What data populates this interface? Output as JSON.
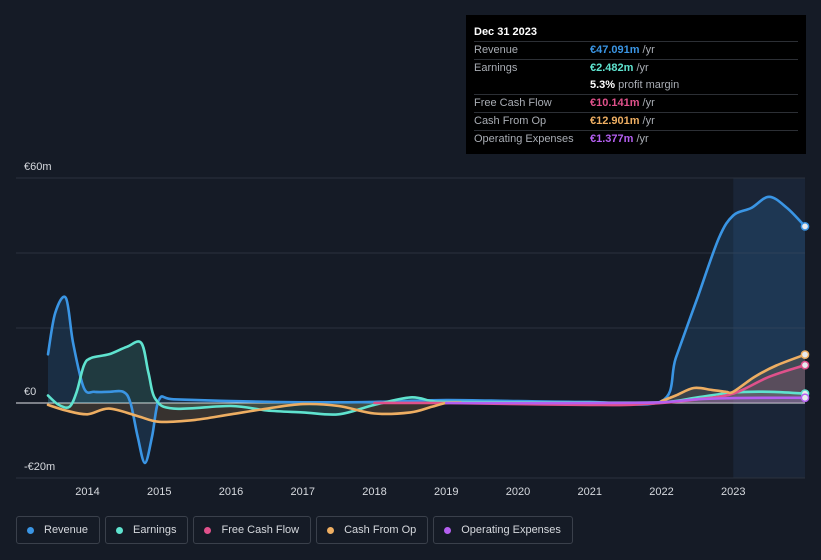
{
  "tooltip": {
    "date": "Dec 31 2023",
    "rows": [
      {
        "label": "Revenue",
        "value": "€47.091m",
        "unit": "/yr",
        "color": "#3a95e4"
      },
      {
        "label": "Earnings",
        "value": "€2.482m",
        "unit": "/yr",
        "color": "#5fe3cf"
      },
      {
        "label": "",
        "value": "5.3%",
        "unit": "profit margin",
        "color": "#ffffff"
      },
      {
        "label": "Free Cash Flow",
        "value": "€10.141m",
        "unit": "/yr",
        "color": "#e0518b"
      },
      {
        "label": "Cash From Op",
        "value": "€12.901m",
        "unit": "/yr",
        "color": "#eeae62"
      },
      {
        "label": "Operating Expenses",
        "value": "€1.377m",
        "unit": "/yr",
        "color": "#b45ff0"
      }
    ]
  },
  "legend": [
    {
      "label": "Revenue",
      "color": "#3a95e4"
    },
    {
      "label": "Earnings",
      "color": "#5fe3cf"
    },
    {
      "label": "Free Cash Flow",
      "color": "#e0518b"
    },
    {
      "label": "Cash From Op",
      "color": "#eeae62"
    },
    {
      "label": "Operating Expenses",
      "color": "#b45ff0"
    }
  ],
  "chart_data": {
    "type": "area",
    "y_tick_labels": [
      "€60m",
      "€0",
      "-€20m"
    ],
    "y_ticks": [
      60,
      0,
      -20
    ],
    "ylim": [
      -20,
      60
    ],
    "xlim": [
      2013.45,
      2024.0
    ],
    "x_ticks": [
      2014,
      2015,
      2016,
      2017,
      2018,
      2019,
      2020,
      2021,
      2022,
      2023
    ],
    "x_tick_labels": [
      "2014",
      "2015",
      "2016",
      "2017",
      "2018",
      "2019",
      "2020",
      "2021",
      "2022",
      "2023"
    ],
    "highlight_from": 2023.0,
    "grid": true,
    "legend_position": "bottom",
    "series": [
      {
        "name": "Revenue",
        "color": "#3a95e4",
        "x": [
          2013.45,
          2013.55,
          2013.7,
          2013.8,
          2013.95,
          2014.1,
          2014.3,
          2014.5,
          2014.6,
          2014.7,
          2014.8,
          2014.9,
          2015.0,
          2015.2,
          2016.0,
          2017.0,
          2018.0,
          2019.0,
          2020.0,
          2021.0,
          2022.0,
          2022.2,
          2022.5,
          2022.8,
          2023.0,
          2023.25,
          2023.5,
          2023.75,
          2024.0
        ],
        "y": [
          13,
          24,
          28,
          16,
          4,
          3,
          3,
          3,
          0,
          -9,
          -16,
          -9,
          1,
          1,
          0.5,
          0.2,
          0.3,
          0.8,
          0.5,
          0.3,
          0.5,
          12,
          28,
          44,
          50,
          52,
          55,
          52,
          47.1
        ]
      },
      {
        "name": "Earnings",
        "color": "#5fe3cf",
        "x": [
          2013.45,
          2013.6,
          2013.75,
          2013.85,
          2013.95,
          2014.05,
          2014.3,
          2014.55,
          2014.75,
          2014.85,
          2014.95,
          2015.2,
          2016.0,
          2016.5,
          2017.0,
          2017.5,
          2018.0,
          2018.5,
          2018.8,
          2019.0,
          2020.0,
          2021.0,
          2022.0,
          2022.5,
          2023.0,
          2023.5,
          2024.0
        ],
        "y": [
          2,
          -0.5,
          -1,
          3,
          10,
          12,
          13,
          15,
          16,
          8,
          1,
          -1.5,
          -0.8,
          -2,
          -2.5,
          -3,
          -0.5,
          1.5,
          0.5,
          0.3,
          0.2,
          0.1,
          0.2,
          1.5,
          2.8,
          3,
          2.5
        ]
      },
      {
        "name": "Free Cash Flow",
        "color": "#e0518b",
        "x": [
          2018.0,
          2019.0,
          2020.0,
          2021.0,
          2021.5,
          2022.0,
          2022.5,
          2023.0,
          2023.5,
          2024.0
        ],
        "y": [
          0,
          0,
          -0.3,
          -0.5,
          -0.5,
          0,
          1,
          2.5,
          7,
          10.1
        ]
      },
      {
        "name": "Cash From Op",
        "color": "#eeae62",
        "x": [
          2013.45,
          2013.7,
          2014.0,
          2014.3,
          2014.7,
          2015.0,
          2015.5,
          2016.0,
          2016.5,
          2017.0,
          2017.5,
          2018.0,
          2018.5,
          2018.8,
          2019.0,
          2019.2
        ],
        "y": [
          -0.5,
          -2,
          -3,
          -1.5,
          -3.5,
          -5,
          -4.5,
          -3,
          -1.5,
          -0.3,
          -0.8,
          -2.8,
          -2.5,
          -1,
          0,
          0.1
        ]
      },
      {
        "name": "Cash From Op",
        "color": "#eeae62",
        "x": [
          2022.0,
          2022.2,
          2022.45,
          2022.7,
          2022.9,
          2023.0,
          2023.3,
          2023.6,
          2024.0
        ],
        "y": [
          0.5,
          2,
          4,
          3.5,
          3,
          3,
          7,
          10,
          12.9
        ]
      },
      {
        "name": "Operating Expenses",
        "color": "#b45ff0",
        "x": [
          2019.0,
          2020.0,
          2021.0,
          2022.0,
          2022.5,
          2023.0,
          2023.5,
          2024.0
        ],
        "y": [
          0,
          0,
          0,
          0.2,
          1,
          1.3,
          1.4,
          1.4
        ]
      }
    ]
  }
}
